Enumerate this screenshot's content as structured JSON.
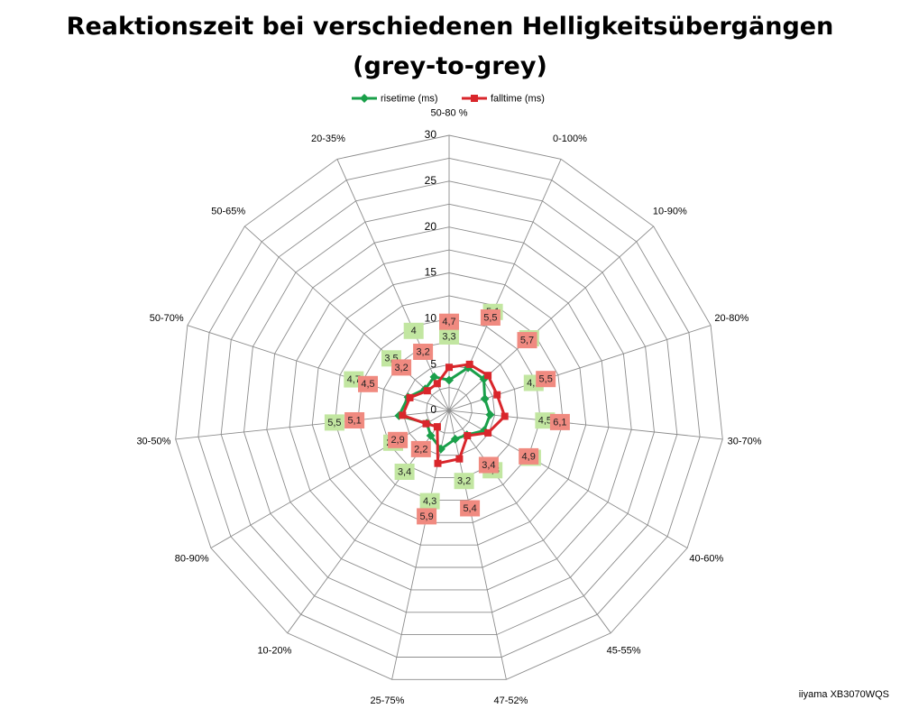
{
  "chart_data": {
    "type": "radar",
    "title_line1": "Reaktionszeit bei verschiedenen Helligkeitsübergängen",
    "title_line2": "(grey-to-grey)",
    "categories": [
      "50-80 %",
      "0-100%",
      "10-90%",
      "20-80%",
      "30-70%",
      "40-60%",
      "45-55%",
      "47-52%",
      "25-75%",
      "10-20%",
      "80-90%",
      "30-50%",
      "50-70%",
      "50-65%",
      "20-35%"
    ],
    "rlim": [
      0,
      30
    ],
    "rticks": [
      0,
      5,
      10,
      15,
      20,
      25,
      30
    ],
    "grid": true,
    "legend_position": "top",
    "series": [
      {
        "name": "risetime (ms)",
        "color": "#1aa04a",
        "marker": "diamond",
        "label_bg": "#c2e6a1",
        "values": [
          3.3,
          5.1,
          5.1,
          4.1,
          4.5,
          4.4,
          3.3,
          3.2,
          4.3,
          3.4,
          2.8,
          5.5,
          4.7,
          3.5,
          4.0
        ],
        "labels": [
          "3,3",
          "5,1",
          "5,1",
          "4,1",
          "4,5",
          "4,4",
          "3,3",
          "3,2",
          "4,3",
          "3,4",
          "2,8",
          "5,5",
          "4,7",
          "3,5",
          "4"
        ]
      },
      {
        "name": "falltime (ms)",
        "color": "#d9262b",
        "marker": "square",
        "label_bg": "#f08a80",
        "values": [
          4.7,
          5.5,
          5.7,
          5.5,
          6.1,
          4.9,
          3.4,
          5.4,
          5.9,
          2.2,
          2.9,
          5.1,
          4.5,
          3.2,
          3.2
        ],
        "labels": [
          "4,7",
          "5,5",
          "5,7",
          "5,5",
          "6,1",
          "4,9",
          "3,4",
          "5,4",
          "5,9",
          "2,2",
          "2,9",
          "5,1",
          "4,5",
          "3,2",
          "3,2"
        ]
      }
    ]
  },
  "watermark": "iiyama XB3070WQS"
}
